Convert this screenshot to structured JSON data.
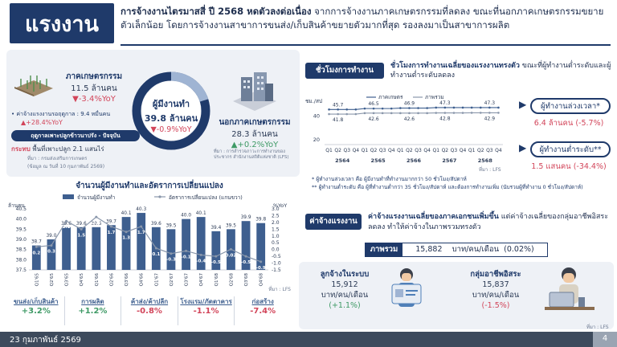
{
  "logo": {
    "text": "แรงงาน"
  },
  "headline": {
    "bold": "การจ้างงานไตรมาสสี่ ปี 2568 หดตัวลงต่อเนื่อง",
    "rest": " จากการจ้างงานภาคเกษตรกรรมที่ลดลง ขณะที่นอกภาคเกษตรกรรมขยายตัวเล็กน้อย โดยการจ้างงานสาขาการขนส่ง/เก็บสินค้าขยายตัวมากที่สุด รองลงมาเป็นสาขาการผลิต"
  },
  "agri": {
    "title": "ภาคเกษตรกรรม",
    "value": "11.5 ล้านคน",
    "change": "-3.4%YoY",
    "wage_label": "ค่าจ้างแรงงานรอฤดูกาล : 9.4 หมื่นคน",
    "wage_change": "+28.4%YoY",
    "crop_tag": "ฤดูกาลเพาะปลูกข้าวนาปรัง - ปัจจุบัน",
    "crop_text_bold": "กระทบ",
    "crop_text": " พื้นที่เพาะปลูก 2.1 แสนไร่",
    "crop_source": "ที่มา : กรมส่งเสริมการเกษตร",
    "crop_note": "(ข้อมูล ณ วันที่ 10 กุมภาพันธ์ 2569)"
  },
  "employed": {
    "title": "ผู้มีงานทำ",
    "value": "39.8 ล้านคน",
    "change": "-0.9%YoY"
  },
  "nonagri": {
    "title": "นอกภาคเกษตรกรรม",
    "value": "28.3 ล้านคน",
    "change": "+0.2%YoY",
    "source": "ที่มา : การสำรวจภาวะการทำงานของประชากร สำนักงานสถิติแห่งชาติ (LFS)"
  },
  "left_chart_title": "จำนวนผู้มีงานทำและอัตราการเปลี่ยนแปลง",
  "sectors": [
    {
      "name": "ขนส่ง/เก็บสินค้า",
      "change": "+3.2%",
      "color": "#3f9a66"
    },
    {
      "name": "การผลิต",
      "change": "+1.2%",
      "color": "#3f9a66"
    },
    {
      "name": "ค้าส่ง/ค้าปลีก",
      "change": "-0.8%",
      "color": "#d2455a"
    },
    {
      "name": "โรงแรม/ภัตตาคาร",
      "change": "-1.1%",
      "color": "#d2455a"
    },
    {
      "name": "ก่อสร้าง",
      "change": "-7.4%",
      "color": "#d2455a"
    }
  ],
  "hours": {
    "tag": "ชั่วโมงการทำงาน",
    "title_bold": "ชั่วโมงการทำงานเฉลี่ยของแรงงานทรงตัว",
    "title_rest": " ขณะที่ผู้ทำงานต่ำระดับและผู้ทำงานต่ำระดับลดลง",
    "note1": "* ผู้ทำงานล่วงเวลา คือ ผู้มีงานทำที่ทำงานมากกว่า 50 ชั่วโมง/สัปดาห์",
    "note2": "** ผู้ทำงานต่ำระดับ คือ ผู้ที่ทำงานต่ำกว่า 35 ชั่วโมง/สัปดาห์ และต้องการทำงานเพิ่ม (นับรวมผู้ที่ทำงาน 0 ชั่วโมง/สัปดาห์)",
    "source": "ที่มา : LFS",
    "overtime_label": "ผู้ทำงานล่วงเวลา*",
    "overtime_value": "6.4 ล้านคน (-5.7%)",
    "under_label": "ผู้ทำงานต่ำระดับ**",
    "under_value": "1.5 แสนคน (-34.4%)"
  },
  "wage": {
    "tag": "ค่าจ้างแรงงาน",
    "title_bold": "ค่าจ้างแรงงานเฉลี่ยของภาคเอกชนเพิ่มขึ้น",
    "title_rest": " แต่ค่าจ้างเฉลี่ยของกลุ่มอาชีพอิสระลดลง ทำให้ค่าจ้างในภาพรวมทรงตัว",
    "overall_label": "ภาพรวม",
    "overall_value": "15,882",
    "overall_unit": "บาท/คน/เดือน",
    "overall_change": "(0.02%)",
    "emp_label": "ลูกจ้างในระบบ",
    "emp_value": "15,912",
    "emp_unit": "บาท/คน/เดือน",
    "emp_change": "(+1.1%)",
    "self_label": "กลุ่มอาชีพอิสระ",
    "self_value": "15,837",
    "self_unit": "บาท/คน/เดือน",
    "self_change": "(-1.5%)",
    "source": "ที่มา : LFS"
  },
  "footer": {
    "date": "23 กุมภาพันธ์ 2569",
    "page": "4"
  },
  "chart_data": [
    {
      "type": "bar",
      "title": "จำนวนผู้มีงานทำและอัตราการเปลี่ยนแปลง",
      "ylabel": "ล้านคน",
      "y2label": "%YoY",
      "ylim": [
        37.5,
        40.5
      ],
      "y2lim": [
        -1.5,
        3.0
      ],
      "yticks": [
        "37.5",
        "38.0",
        "38.5",
        "39.0",
        "39.5",
        "40.0",
        "40.5"
      ],
      "y2ticks": [
        "-1.5",
        "-1.0",
        "-0.5",
        "0.0",
        "0.5",
        "1.0",
        "1.5",
        "2.0",
        "2.5",
        "3.0"
      ],
      "categories": [
        "Q1'65",
        "Q2'65",
        "Q3'65",
        "Q4'65",
        "Q1'66",
        "Q2'66",
        "Q3'66",
        "Q4'66",
        "Q1'67",
        "Q2'67",
        "Q3'67",
        "Q4'67",
        "Q1'68",
        "Q2'68",
        "Q3'68",
        "Q4'68"
      ],
      "series": [
        {
          "name": "จำนวนผู้มีงานทำ",
          "values": [
            38.7,
            39.0,
            39.6,
            39.6,
            39.6,
            39.7,
            40.1,
            40.3,
            39.6,
            39.5,
            40.0,
            40.1,
            39.4,
            39.5,
            39.9,
            39.8
          ],
          "labels": [
            "38.7",
            "39.0",
            "39.6",
            "39.6",
            "39.6",
            "39.7",
            "40.1",
            "40.3",
            "39.6",
            "39.5",
            "40.0",
            "40.1",
            "39.4",
            "39.5",
            "39.9",
            "39.8"
          ]
        },
        {
          "name": "อัตราการเปลี่ยนแปลง (แกนขวา)",
          "values": [
            0.2,
            0.3,
            2.1,
            1.5,
            2.4,
            1.7,
            1.3,
            1.7,
            0.1,
            -0.3,
            -0.1,
            -0.4,
            -0.5,
            0.02,
            -0.5,
            -0.9
          ],
          "labels": [
            "0.2",
            "0.3",
            "2.1",
            "1.5",
            "2.4",
            "1.7",
            "1.3",
            "1.7",
            "0.1",
            "-0.3",
            "-0.1",
            "-0.4",
            "-0.5",
            "0.02",
            "-0.5",
            "-0.9"
          ]
        }
      ],
      "source": "ที่มา : LFS"
    },
    {
      "type": "line",
      "ylabel": "ชม./สป",
      "ylim": [
        20,
        50
      ],
      "yticks": [
        "20",
        "40"
      ],
      "quarters": [
        "Q1",
        "Q2",
        "Q3",
        "Q4",
        "Q1",
        "Q2",
        "Q3",
        "Q4",
        "Q1",
        "Q2",
        "Q3",
        "Q4",
        "Q1",
        "Q2",
        "Q3",
        "Q4",
        "Q1",
        "Q2",
        "Q3",
        "Q4"
      ],
      "years": [
        "2564",
        "2565",
        "2566",
        "2567",
        "2568"
      ],
      "series": [
        {
          "name": "ภาคเกษตร",
          "values": [
            45.7,
            45.7,
            45.7,
            45.7,
            46.5,
            46.5,
            46.5,
            46.5,
            46.9,
            46.9,
            46.9,
            46.9,
            47.3,
            47.3,
            47.3,
            47.3,
            47.3,
            47.3,
            47.3,
            47.3
          ],
          "labels": {
            "1": "45.7",
            "5": "46.5",
            "9": "46.9",
            "13": "47.3",
            "18": "47.3"
          }
        },
        {
          "name": "ภาพรวม",
          "values": [
            41.8,
            41.8,
            41.8,
            41.8,
            42.6,
            42.6,
            42.6,
            42.6,
            42.6,
            42.6,
            42.6,
            42.6,
            42.8,
            42.8,
            42.8,
            42.8,
            42.9,
            42.9,
            42.9,
            42.9
          ],
          "labels": {
            "1": "41.8",
            "5": "42.6",
            "9": "42.6",
            "13": "42.8",
            "18": "42.9"
          }
        }
      ],
      "source": "ที่มา : LFS"
    }
  ],
  "colors": {
    "navy": "#1f3a6a",
    "bar": "#3e5f8f",
    "line": "#8a97ab",
    "red": "#d2455a",
    "green": "#3f9a66"
  }
}
